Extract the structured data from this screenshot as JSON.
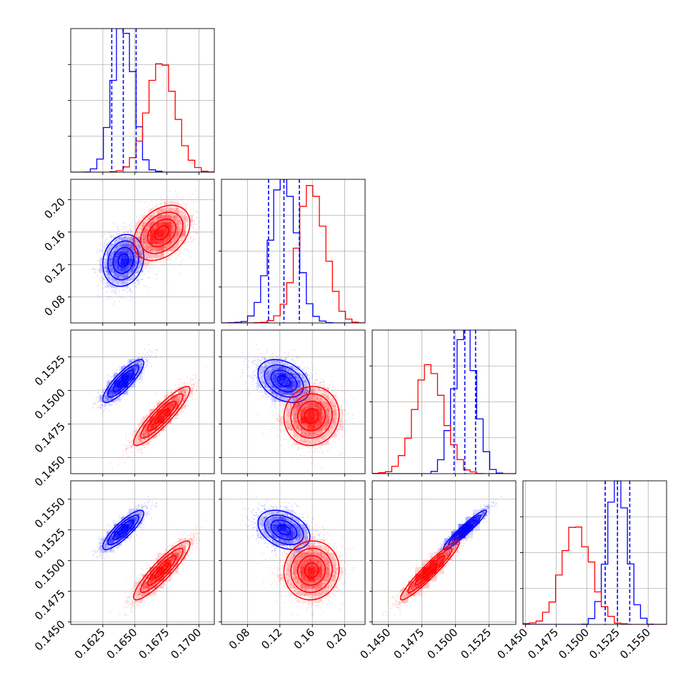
{
  "colors": {
    "blue": "#0000ff",
    "red": "#ff0000"
  },
  "chart_data": {
    "type": "corner",
    "title": "",
    "grid": true,
    "series": [
      {
        "color": "#0000ff",
        "mean": [
          0.1641,
          0.125,
          0.1507,
          0.1525
        ],
        "std": [
          0.0008,
          0.016,
          0.0008,
          0.0008
        ],
        "quantiles": [
          [
            0.1632,
            0.1641,
            0.1651
          ],
          [
            0.106,
            0.125,
            0.144
          ],
          [
            0.1499,
            0.1507,
            0.1515
          ],
          [
            0.1515,
            0.1525,
            0.1535
          ]
        ]
      },
      {
        "color": "#ff0000",
        "mean": [
          0.1671,
          0.159,
          0.1481,
          0.1492
        ],
        "std": [
          0.0011,
          0.017,
          0.0011,
          0.0012
        ],
        "quantiles": []
      }
    ],
    "axes": [
      {
        "range": [
          0.16,
          0.1712
        ],
        "ticks": [
          0.1625,
          0.165,
          0.1675,
          0.17
        ],
        "ticklabels": [
          "0.1625",
          "0.1650",
          "0.1675",
          "0.1700"
        ]
      },
      {
        "range": [
          0.048,
          0.225
        ],
        "ticks": [
          0.08,
          0.12,
          0.16,
          0.2
        ],
        "ticklabels": [
          "0.08",
          "0.12",
          "0.16",
          "0.20"
        ]
      },
      {
        "range": [
          0.1438,
          0.1545
        ],
        "ticks": [
          0.145,
          0.1475,
          0.15,
          0.1525
        ],
        "ticklabels": [
          "0.1450",
          "0.1475",
          "0.1500",
          "0.1525"
        ]
      },
      {
        "range": [
          0.1448,
          0.1565
        ],
        "ticks": [
          0.145,
          0.1475,
          0.15,
          0.1525,
          0.155
        ],
        "ticklabels": [
          "0.1450",
          "0.1475",
          "0.1500",
          "0.1525",
          "0.1550"
        ]
      }
    ]
  }
}
